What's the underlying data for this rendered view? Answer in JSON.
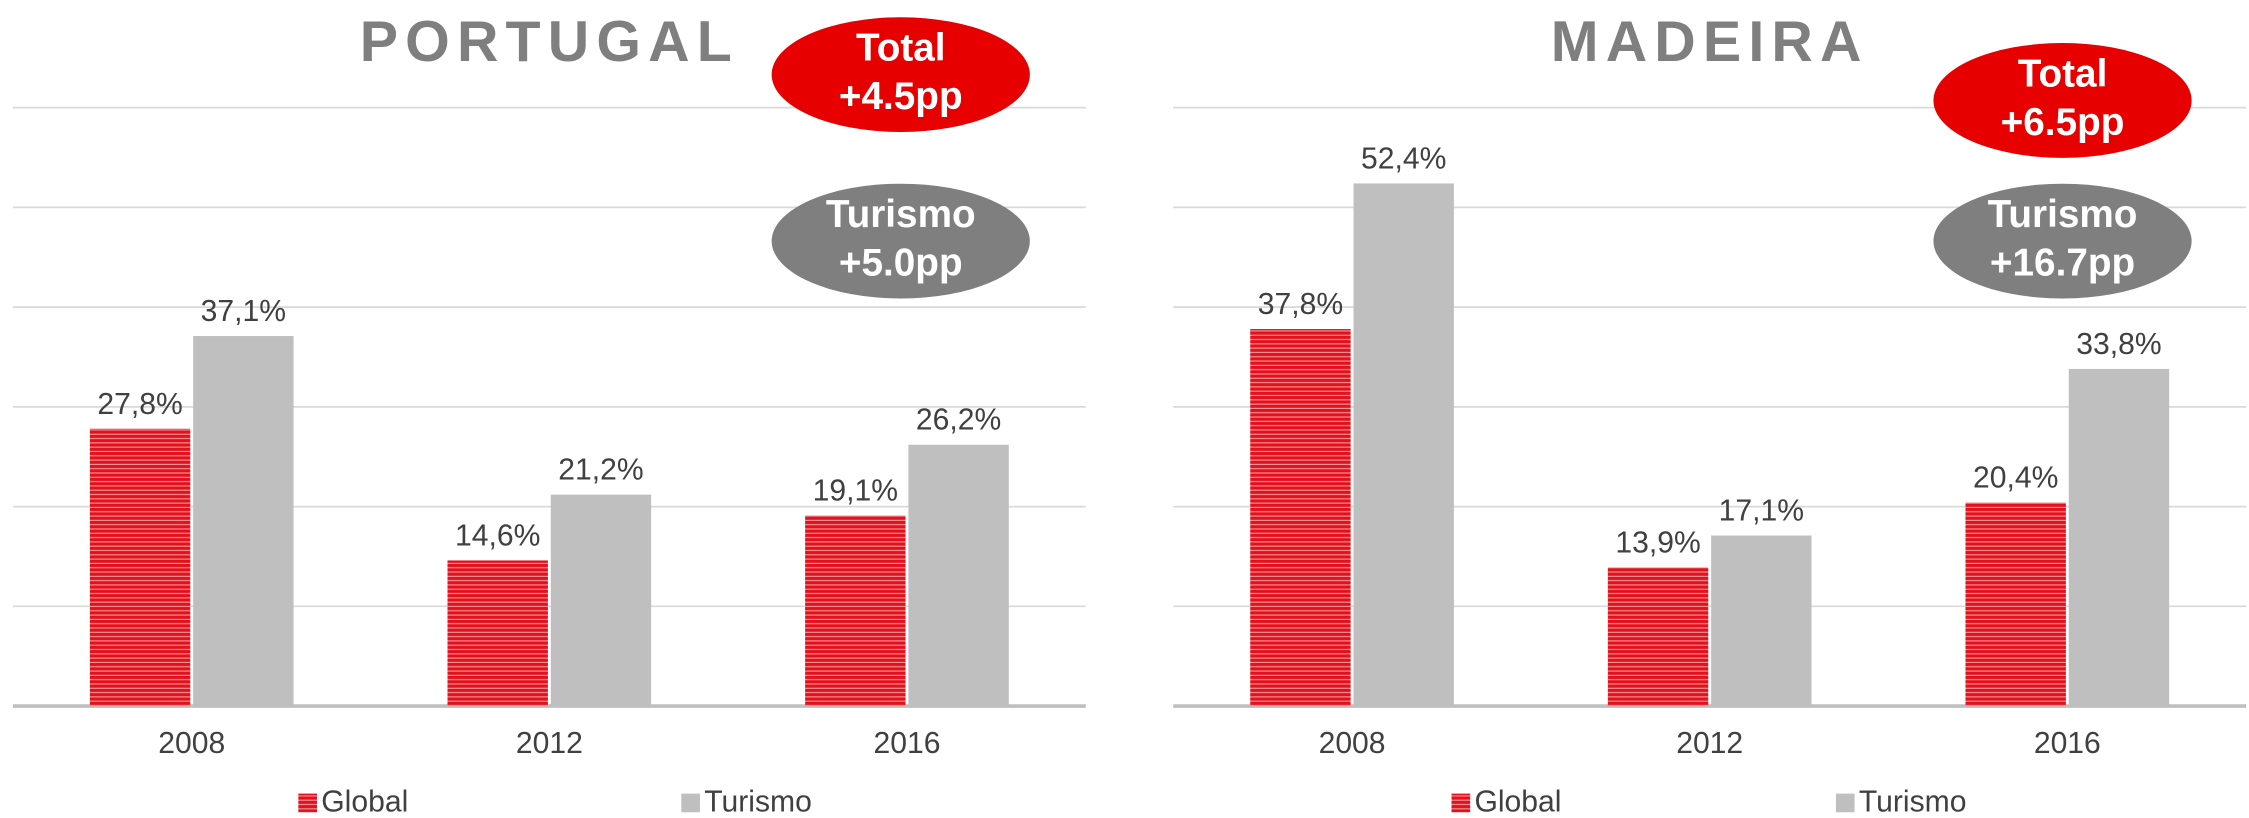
{
  "chart_data": [
    {
      "type": "bar",
      "title": "PORTUGAL",
      "categories": [
        "2008",
        "2012",
        "2016"
      ],
      "series": [
        {
          "name": "Global",
          "color": "#e3111b",
          "values": [
            27.8,
            14.6,
            19.1
          ],
          "value_labels": [
            "27,8%",
            "14,6%",
            "19,1%"
          ]
        },
        {
          "name": "Turismo",
          "color": "#bfbfbf",
          "values": [
            37.1,
            21.2,
            26.2
          ],
          "value_labels": [
            "37,1%",
            "21,2%",
            "26,2%"
          ]
        }
      ],
      "ylim": [
        0,
        60
      ],
      "yticks": [
        0,
        10,
        20,
        30,
        40,
        50,
        60
      ],
      "grid": true,
      "annotations": [
        {
          "lines": [
            "Total",
            "+4.5pp"
          ],
          "color": "#e60000"
        },
        {
          "lines": [
            "Turismo",
            "+5.0pp"
          ],
          "color": "#7f7f7f"
        }
      ]
    },
    {
      "type": "bar",
      "title": "MADEIRA",
      "categories": [
        "2008",
        "2012",
        "2016"
      ],
      "series": [
        {
          "name": "Global",
          "color": "#e3111b",
          "values": [
            37.8,
            13.9,
            20.4
          ],
          "value_labels": [
            "37,8%",
            "13,9%",
            "20,4%"
          ]
        },
        {
          "name": "Turismo",
          "color": "#bfbfbf",
          "values": [
            52.4,
            17.1,
            33.8
          ],
          "value_labels": [
            "52,4%",
            "17,1%",
            "33,8%"
          ]
        }
      ],
      "ylim": [
        0,
        60
      ],
      "yticks": [
        0,
        10,
        20,
        30,
        40,
        50,
        60
      ],
      "grid": true,
      "annotations": [
        {
          "lines": [
            "Total",
            "+6.5pp"
          ],
          "color": "#e60000"
        },
        {
          "lines": [
            "Turismo",
            "+16.7pp"
          ],
          "color": "#7f7f7f"
        }
      ]
    }
  ]
}
